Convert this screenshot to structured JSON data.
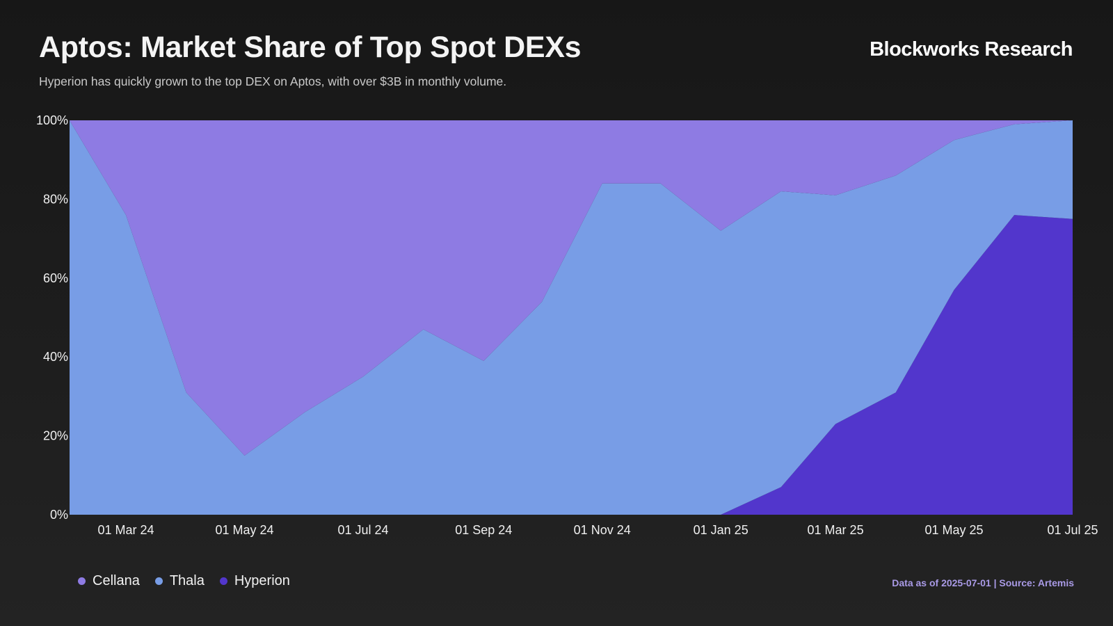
{
  "header": {
    "title": "Aptos: Market Share of Top Spot DEXs",
    "subtitle": "Hyperion has quickly grown to the top DEX on Aptos, with over $3B in monthly volume.",
    "brand": "Blockworks Research"
  },
  "footer": {
    "source": "Data as of 2025-07-01 | Source: Artemis"
  },
  "colors": {
    "Cellana": "#8e7be3",
    "Thala": "#789de6",
    "Hyperion": "#5236cc"
  },
  "chart_data": {
    "type": "area",
    "stacked": true,
    "normalized": true,
    "x": [
      "2024-02-01",
      "2024-03-01",
      "2024-04-01",
      "2024-05-01",
      "2024-06-01",
      "2024-07-01",
      "2024-08-01",
      "2024-09-01",
      "2024-10-01",
      "2024-11-01",
      "2024-12-01",
      "2025-01-01",
      "2025-02-01",
      "2025-03-01",
      "2025-04-01",
      "2025-05-01",
      "2025-06-01",
      "2025-07-01"
    ],
    "series": [
      {
        "name": "Hyperion",
        "values": [
          0,
          0,
          0,
          0,
          0,
          0,
          0,
          0,
          0,
          0,
          0,
          0,
          7,
          23,
          31,
          57,
          76,
          75
        ]
      },
      {
        "name": "Thala",
        "values": [
          100,
          76,
          31,
          15,
          26,
          35,
          47,
          39,
          54,
          84,
          84,
          72,
          75,
          58,
          55,
          38,
          23,
          25
        ]
      },
      {
        "name": "Cellana",
        "values": [
          0,
          24,
          69,
          85,
          74,
          65,
          53,
          61,
          46,
          16,
          16,
          28,
          18,
          19,
          14,
          5,
          1,
          0
        ]
      }
    ],
    "legend": [
      "Cellana",
      "Thala",
      "Hyperion"
    ],
    "legend_position": "bottom-left",
    "x_ticks": [
      "01 Mar 24",
      "01 May 24",
      "01 Jul 24",
      "01 Sep 24",
      "01 Nov 24",
      "01 Jan 25",
      "01 Mar 25",
      "01 May 25",
      "01 Jul 25"
    ],
    "y_ticks": [
      "0%",
      "20%",
      "40%",
      "60%",
      "80%",
      "100%"
    ],
    "ylim": [
      0,
      100
    ],
    "grid": false
  }
}
